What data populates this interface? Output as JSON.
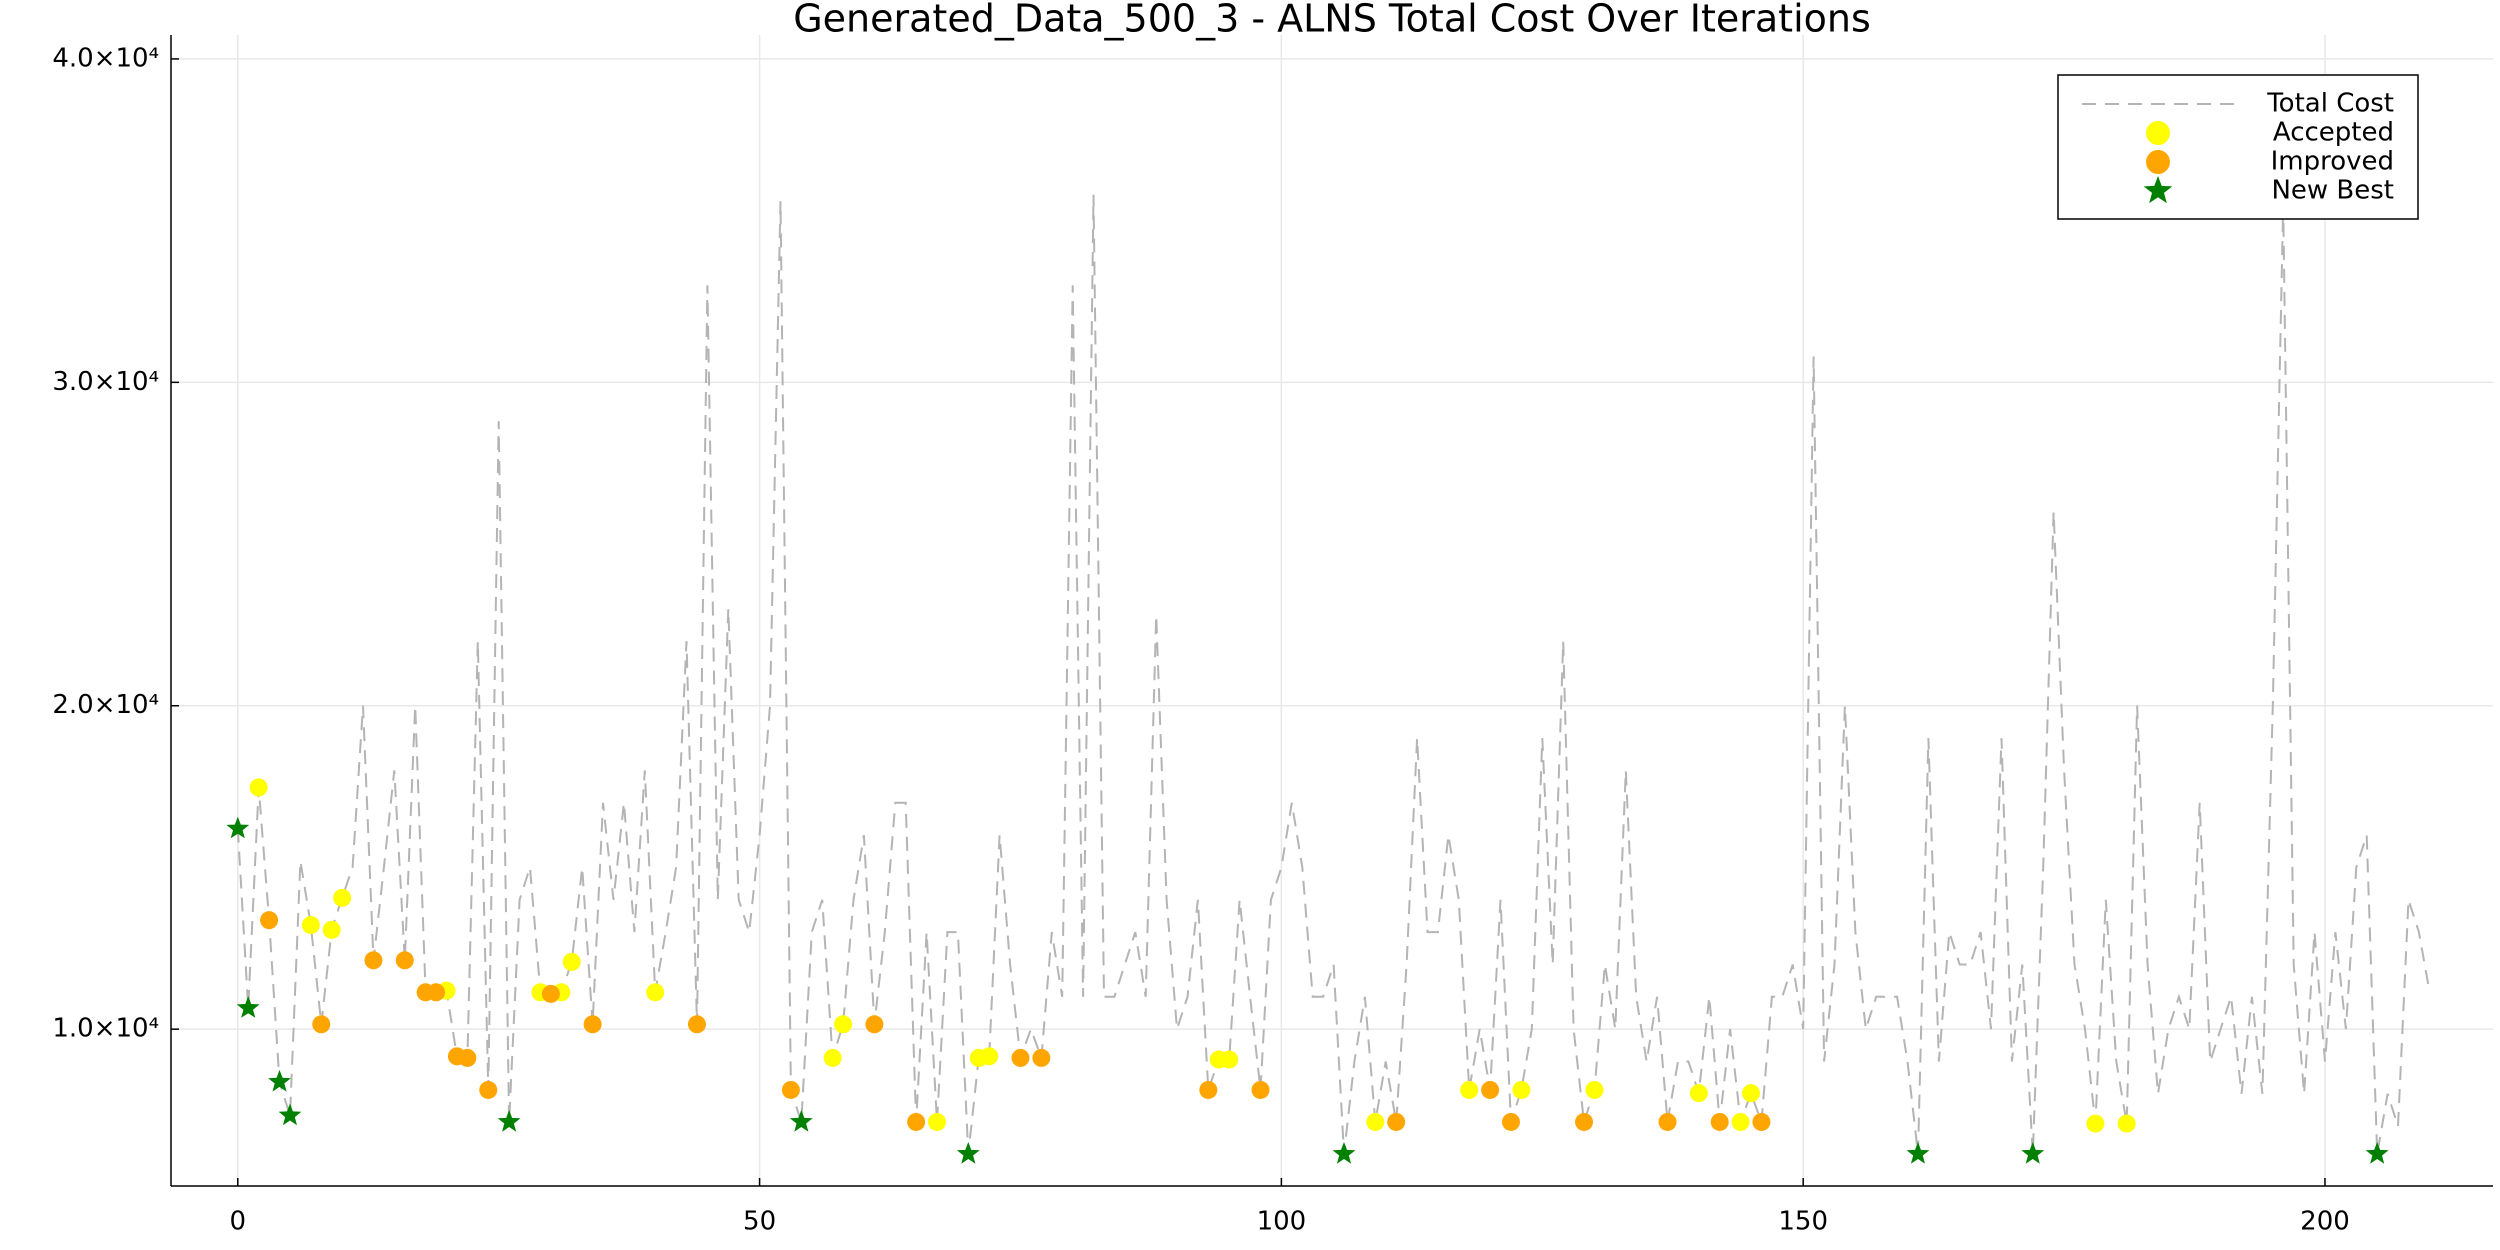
{
  "chart_data": {
    "type": "line-scatter",
    "title": "Generated_Data_500_3 - ALNS Total Cost Over Iterations",
    "xlim": [
      -6.4,
      216.1
    ],
    "ylim": [
      5150,
      40740
    ],
    "xticks": [
      0,
      50,
      100,
      150,
      200
    ],
    "yticks": [
      {
        "value": 10000,
        "label": "1.0×10⁴"
      },
      {
        "value": 20000,
        "label": "2.0×10⁴"
      },
      {
        "value": 30000,
        "label": "3.0×10⁴"
      },
      {
        "value": 40000,
        "label": "4.0×10⁴"
      }
    ],
    "grid": true,
    "legend": "top-right",
    "series": [
      {
        "name": "Total Cost",
        "kind": "line",
        "color": "#b4b4b4",
        "x": [
          0,
          1,
          2,
          3,
          4,
          5,
          6,
          7,
          8,
          9,
          10,
          11,
          12,
          13,
          14,
          15,
          16,
          17,
          18,
          19,
          20,
          21,
          22,
          23,
          24,
          25,
          26,
          27,
          28,
          29,
          30,
          31,
          32,
          33,
          34,
          35,
          36,
          37,
          38,
          39,
          40,
          41,
          42,
          43,
          44,
          45,
          46,
          47,
          48,
          49,
          50,
          51,
          52,
          53,
          54,
          55,
          56,
          57,
          58,
          59,
          60,
          61,
          62,
          63,
          64,
          65,
          66,
          67,
          68,
          69,
          70,
          71,
          72,
          73,
          74,
          75,
          76,
          77,
          78,
          79,
          80,
          81,
          82,
          83,
          84,
          85,
          86,
          87,
          88,
          89,
          90,
          91,
          92,
          93,
          94,
          95,
          96,
          97,
          98,
          99,
          100,
          101,
          102,
          103,
          104,
          105,
          106,
          107,
          108,
          109,
          110,
          111,
          112,
          113,
          114,
          115,
          116,
          117,
          118,
          119,
          120,
          121,
          122,
          123,
          124,
          125,
          126,
          127,
          128,
          129,
          130,
          131,
          132,
          133,
          134,
          135,
          136,
          137,
          138,
          139,
          140,
          141,
          142,
          143,
          144,
          145,
          146,
          147,
          148,
          149,
          150,
          151,
          152,
          153,
          154,
          155,
          156,
          157,
          158,
          159,
          160,
          161,
          162,
          163,
          164,
          165,
          166,
          167,
          168,
          169,
          170,
          171,
          172,
          173,
          174,
          175,
          176,
          177,
          178,
          179,
          180,
          181,
          182,
          183,
          184,
          185,
          186,
          187,
          188,
          189,
          190,
          191,
          192,
          193,
          194,
          195,
          196,
          197,
          198,
          199,
          200,
          201,
          202,
          203,
          204,
          205,
          206,
          207,
          208,
          209,
          210
        ],
        "values": [
          16200,
          10650,
          17475,
          13370,
          8370,
          7330,
          15200,
          13220,
          10150,
          13070,
          14060,
          15000,
          20000,
          12130,
          15000,
          18000,
          12130,
          20000,
          11140,
          11140,
          11190,
          9160,
          9110,
          22000,
          8120,
          28800,
          7130,
          14000,
          15000,
          11140,
          11090,
          11140,
          12080,
          15000,
          10150,
          17000,
          14000,
          17000,
          13000,
          18000,
          11140,
          13000,
          15000,
          22000,
          10150,
          33000,
          14000,
          23000,
          14000,
          13000,
          16000,
          20000,
          35600,
          8120,
          7130,
          13000,
          14000,
          9110,
          10150,
          14000,
          16000,
          10150,
          13000,
          17000,
          17000,
          7130,
          13000,
          7130,
          13000,
          13000,
          6140,
          9110,
          9160,
          16000,
          12000,
          9110,
          10000,
          9110,
          13000,
          11000,
          33000,
          11000,
          35800,
          11000,
          11000,
          12000,
          13000,
          11000,
          22800,
          14000,
          10000,
          11000,
          14000,
          8120,
          9060,
          9060,
          14000,
          11000,
          8120,
          14000,
          15000,
          17000,
          15000,
          11000,
          11000,
          12000,
          6140,
          9000,
          11000,
          7130,
          9000,
          7130,
          12000,
          19000,
          13000,
          13000,
          16000,
          14000,
          8120,
          10000,
          8120,
          14000,
          7130,
          8120,
          10000,
          19000,
          12000,
          22000,
          10000,
          7130,
          8120,
          12000,
          10000,
          18000,
          11000,
          9000,
          11000,
          7130,
          9000,
          9000,
          8020,
          11000,
          7130,
          10000,
          7130,
          8020,
          7130,
          11000,
          11000,
          12000,
          10000,
          30800,
          9000,
          12000,
          20000,
          13000,
          10000,
          11000,
          11000,
          11000,
          9000,
          6140,
          19000,
          9000,
          13000,
          12000,
          12000,
          13000,
          10000,
          19000,
          9000,
          12000,
          6140,
          15000,
          26000,
          18000,
          12000,
          10000,
          7080,
          14000,
          9000,
          7080,
          20000,
          12000,
          8000,
          10000,
          11000,
          10000,
          17000,
          9000,
          10000,
          11000,
          8000,
          11000,
          8000,
          20000,
          35500,
          12000,
          8000,
          13000,
          9000,
          13000,
          10000,
          15000,
          16000,
          6140,
          8000,
          7000,
          14000,
          13000,
          11200
        ]
      },
      {
        "name": "Accepted",
        "kind": "circle",
        "color": "#ffff00",
        "x": [
          2,
          7,
          9,
          10,
          20,
          29,
          31,
          32,
          40,
          57,
          58,
          67,
          71,
          72,
          94,
          95,
          109,
          118,
          123,
          130,
          140,
          144,
          145,
          178,
          181
        ],
        "values": [
          17475,
          13220,
          13070,
          14060,
          11190,
          11140,
          11140,
          12080,
          11140,
          9110,
          10150,
          7130,
          9110,
          9160,
          9060,
          9060,
          7130,
          8120,
          8120,
          8120,
          8020,
          7130,
          8020,
          7080,
          7080
        ]
      },
      {
        "name": "Improved",
        "kind": "circle",
        "color": "#ffa500",
        "x": [
          3,
          8,
          13,
          16,
          18,
          19,
          21,
          22,
          24,
          30,
          34,
          44,
          53,
          61,
          65,
          75,
          77,
          93,
          98,
          111,
          120,
          122,
          129,
          137,
          142,
          146
        ],
        "values": [
          13370,
          10150,
          12130,
          12130,
          11140,
          11140,
          9160,
          9110,
          8120,
          11090,
          10150,
          10150,
          8120,
          10150,
          7130,
          9110,
          9110,
          8120,
          8120,
          7130,
          8120,
          7130,
          7130,
          7130,
          7130,
          7130
        ]
      },
      {
        "name": "New Best",
        "kind": "star",
        "color": "#008000",
        "x": [
          0,
          1,
          4,
          5,
          26,
          54,
          70,
          106,
          161,
          172,
          205
        ],
        "values": [
          16200,
          10650,
          8370,
          7330,
          7130,
          7130,
          6140,
          6140,
          6140,
          6140,
          6140
        ]
      }
    ]
  }
}
